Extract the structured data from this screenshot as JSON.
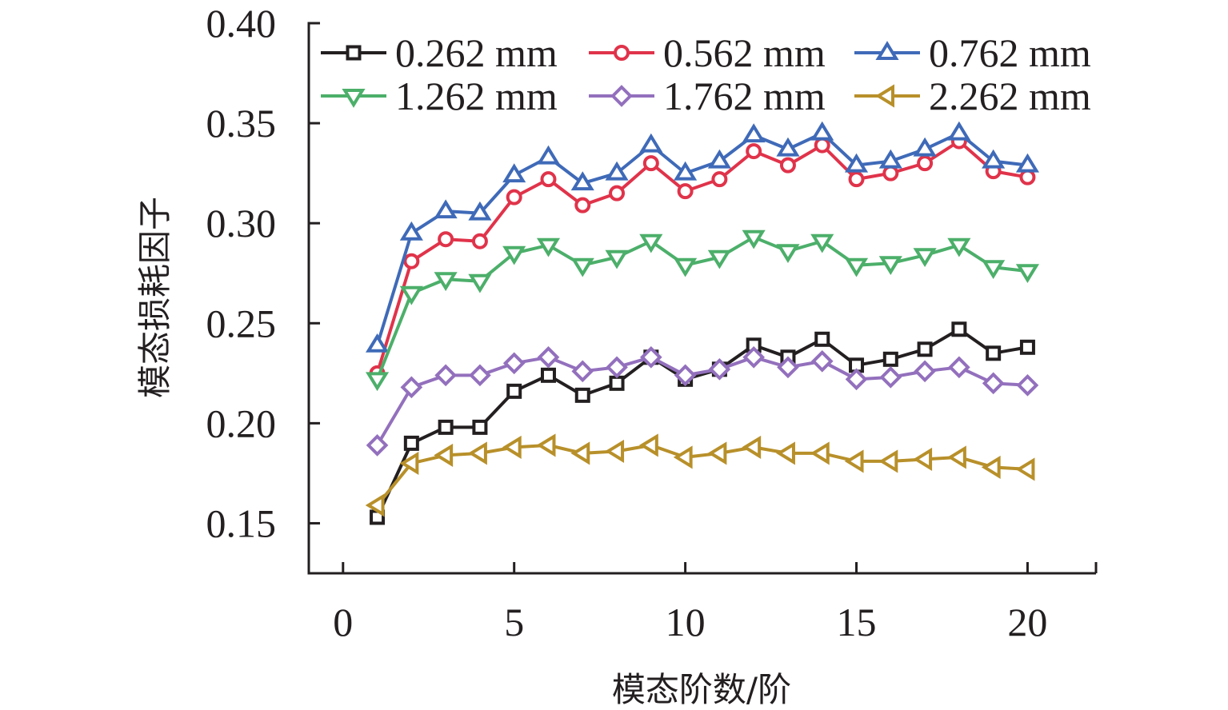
{
  "chart_data": {
    "type": "line",
    "title": "",
    "xlabel": "模态阶数/阶",
    "ylabel": "模态损耗因子",
    "xlim": [
      -1,
      22
    ],
    "ylim": [
      0.125,
      0.4
    ],
    "xticks": [
      0,
      5,
      10,
      15,
      20
    ],
    "xtick_labels": [
      "0",
      "5",
      "10",
      "15",
      "20"
    ],
    "yticks": [
      0.15,
      0.2,
      0.25,
      0.3,
      0.35,
      0.4
    ],
    "ytick_labels": [
      "0.15",
      "0.20",
      "0.25",
      "0.30",
      "0.35",
      "0.40"
    ],
    "grid": false,
    "legend_position": "top",
    "x": [
      1,
      2,
      3,
      4,
      5,
      6,
      7,
      8,
      9,
      10,
      11,
      12,
      13,
      14,
      15,
      16,
      17,
      18,
      19,
      20
    ],
    "series": [
      {
        "name": "0.262 mm",
        "color": "#231f20",
        "marker": "square",
        "values": [
          0.153,
          0.19,
          0.198,
          0.198,
          0.216,
          0.224,
          0.214,
          0.22,
          0.233,
          0.222,
          0.227,
          0.239,
          0.233,
          0.242,
          0.229,
          0.232,
          0.237,
          0.247,
          0.235,
          0.238
        ]
      },
      {
        "name": "0.562 mm",
        "color": "#e0334a",
        "marker": "circle",
        "values": [
          0.225,
          0.281,
          0.292,
          0.291,
          0.313,
          0.322,
          0.309,
          0.315,
          0.33,
          0.316,
          0.322,
          0.336,
          0.329,
          0.339,
          0.322,
          0.325,
          0.33,
          0.341,
          0.326,
          0.323
        ]
      },
      {
        "name": "0.762 mm",
        "color": "#3f6ab8",
        "marker": "triangle-up",
        "values": [
          0.239,
          0.295,
          0.306,
          0.305,
          0.324,
          0.333,
          0.32,
          0.325,
          0.339,
          0.325,
          0.331,
          0.344,
          0.337,
          0.345,
          0.329,
          0.331,
          0.337,
          0.345,
          0.331,
          0.329
        ]
      },
      {
        "name": "1.262 mm",
        "color": "#4caf6a",
        "marker": "triangle-down",
        "values": [
          0.222,
          0.265,
          0.272,
          0.271,
          0.285,
          0.289,
          0.279,
          0.283,
          0.291,
          0.279,
          0.283,
          0.293,
          0.286,
          0.291,
          0.279,
          0.28,
          0.284,
          0.289,
          0.278,
          0.276
        ]
      },
      {
        "name": "1.762 mm",
        "color": "#9370bd",
        "marker": "diamond",
        "values": [
          0.189,
          0.218,
          0.224,
          0.224,
          0.23,
          0.233,
          0.226,
          0.228,
          0.233,
          0.224,
          0.227,
          0.233,
          0.228,
          0.231,
          0.222,
          0.223,
          0.226,
          0.228,
          0.22,
          0.219
        ]
      },
      {
        "name": "2.262 mm",
        "color": "#b8902a",
        "marker": "triangle-left",
        "values": [
          0.159,
          0.18,
          0.184,
          0.185,
          0.188,
          0.189,
          0.185,
          0.186,
          0.189,
          0.183,
          0.185,
          0.188,
          0.185,
          0.185,
          0.181,
          0.181,
          0.182,
          0.183,
          0.178,
          0.177
        ]
      }
    ]
  }
}
